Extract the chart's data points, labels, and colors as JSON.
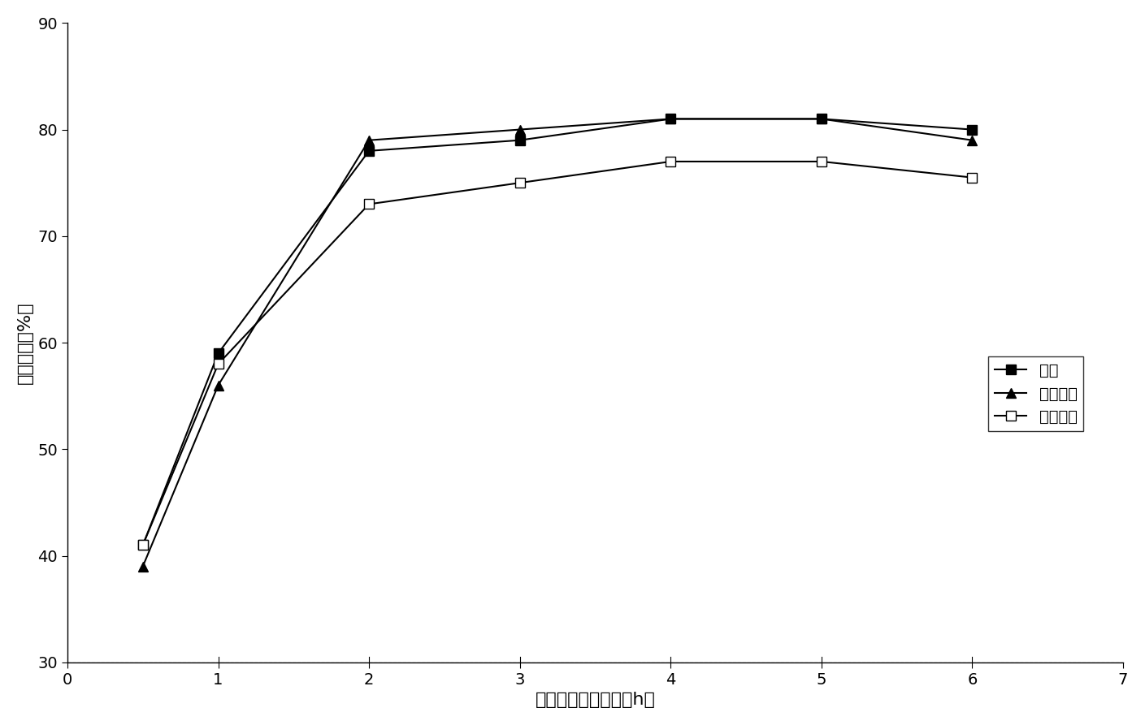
{
  "x": [
    0.5,
    1,
    2,
    3,
    4,
    5,
    6
  ],
  "phenol": [
    41,
    59,
    78,
    79,
    81,
    81,
    80
  ],
  "o_chlorophenol": [
    39,
    56,
    79,
    80,
    81,
    81,
    79
  ],
  "o_aminophenol": [
    41,
    58,
    73,
    75,
    77,
    77,
    75.5
  ],
  "xlabel": "催化氧化反应时间（h）",
  "ylabel": "酚去除率（%）",
  "legend_phenol": "苯酚",
  "legend_o_chloro": "邻氯苯酚",
  "legend_o_amino": "邻氨基酚",
  "xlim": [
    0,
    7
  ],
  "ylim": [
    30,
    90
  ],
  "yticks": [
    30,
    40,
    50,
    60,
    70,
    80,
    90
  ],
  "xticks": [
    0,
    1,
    2,
    3,
    4,
    5,
    6,
    7
  ],
  "background_color": "#ffffff",
  "line_color": "#000000"
}
